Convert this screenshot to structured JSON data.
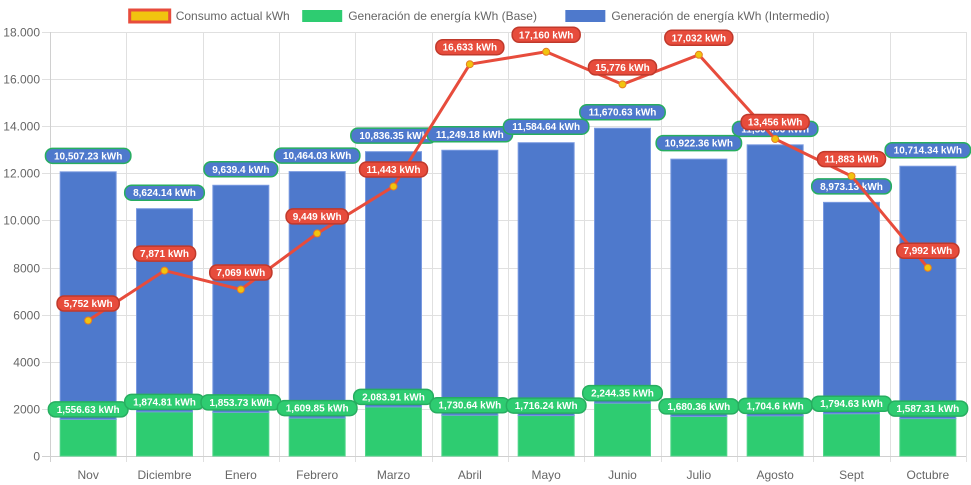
{
  "chart_data": {
    "type": "bar",
    "stacked": true,
    "title": "",
    "xlabel": "",
    "ylabel": "",
    "ylim": [
      0,
      18000
    ],
    "y_ticks": [
      "0",
      "2000",
      "4000",
      "6000",
      "8000",
      "10.000",
      "12.000",
      "14.000",
      "16.000",
      "18.000"
    ],
    "y_tick_values": [
      0,
      2000,
      4000,
      6000,
      8000,
      10000,
      12000,
      14000,
      16000,
      18000
    ],
    "grid": true,
    "legend_position": "top-center",
    "categories": [
      "Nov",
      "Diciembre",
      "Enero",
      "Febrero",
      "Marzo",
      "Abril",
      "Mayo",
      "Junio",
      "Julio",
      "Agosto",
      "Sept",
      "Octubre"
    ],
    "series": [
      {
        "name": "Consumo actual kWh",
        "type": "line",
        "color": "#e74c3c",
        "point_color": "#f1c40f",
        "values": [
          5752,
          7871,
          7069,
          9449,
          11443,
          16633,
          17160,
          15776,
          17032,
          13456,
          11883,
          7992
        ],
        "labels": [
          "5,752 kWh",
          "7,871 kWh",
          "7,069 kWh",
          "9,449 kWh",
          "11,443 kWh",
          "16,633 kWh",
          "17,160 kWh",
          "15,776 kWh",
          "17,032 kWh",
          "13,456 kWh",
          "11,883 kWh",
          "7,992 kWh"
        ]
      },
      {
        "name": "Generación de energía kWh (Base)",
        "type": "bar",
        "color": "#2ecc71",
        "values": [
          1556.63,
          1874.81,
          1853.73,
          1609.85,
          2083.91,
          1730.64,
          1716.24,
          2244.35,
          1680.36,
          1704.6,
          1794.63,
          1587.31
        ],
        "labels": [
          "1,556.63 kWh",
          "1,874.81 kWh",
          "1,853.73 kWh",
          "1,609.85 kWh",
          "2,083.91 kWh",
          "1,730.64 kWh",
          "1,716.24 kWh",
          "2,244.35 kWh",
          "1,680.36 kWh",
          "1,704.6 kWh",
          "1,794.63 kWh",
          "1,587.31 kWh"
        ]
      },
      {
        "name": "Generación de energía kWh (Intermedio)",
        "type": "bar",
        "color": "#4e79cc",
        "values": [
          10507.23,
          8624.14,
          9639.4,
          10464.03,
          10836.35,
          11249.18,
          11584.64,
          11670.63,
          10922.36,
          11506.06,
          8973.13,
          10714.34
        ],
        "labels": [
          "10,507.23 kWh",
          "8,624.14 kWh",
          "9,639.4 kWh",
          "10,464.03 kWh",
          "10,836.35 kWh",
          "11,249.18 kWh",
          "11,584.64 kWh",
          "11,670.63 kWh",
          "10,922.36 kWh",
          "11,506.06 kWh",
          "8,973.13 kWh",
          "10,714.34 kWh"
        ]
      }
    ],
    "legend": [
      {
        "label": "Consumo actual kWh",
        "fill": "#f1c40f",
        "border": "#e74c3c"
      },
      {
        "label": "Generación de energía kWh (Base)",
        "fill": "#2ecc71",
        "border": "#2ecc71"
      },
      {
        "label": "Generación de energía kWh (Intermedio)",
        "fill": "#4e79cc",
        "border": "#4e79cc"
      }
    ]
  }
}
